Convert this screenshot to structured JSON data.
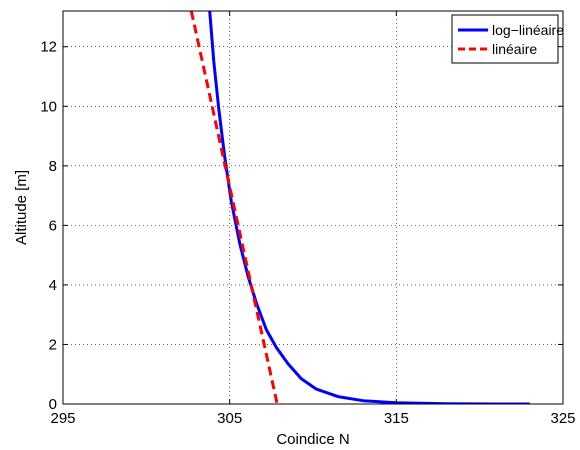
{
  "chart_data": {
    "type": "line",
    "xlabel": "Coindice N",
    "ylabel": "Altitude [m]",
    "xlim": [
      295,
      325
    ],
    "ylim": [
      0,
      13.2
    ],
    "xticks": [
      295,
      305,
      315,
      325
    ],
    "yticks": [
      0,
      2,
      4,
      6,
      8,
      10,
      12
    ],
    "grid": true,
    "legend_position": "top-right",
    "series": [
      {
        "name": "log−linéaire",
        "color": "#0000ff",
        "style": "solid",
        "x": [
          303.8,
          304.05,
          304.35,
          304.7,
          305.1,
          305.6,
          306.1,
          306.6,
          307.2,
          307.8,
          308.5,
          309.3,
          310.2,
          311.5,
          313,
          315,
          318,
          321,
          323
        ],
        "y": [
          13.2,
          11.5,
          9.9,
          8.3,
          6.8,
          5.4,
          4.3,
          3.4,
          2.5,
          1.9,
          1.35,
          0.85,
          0.5,
          0.25,
          0.11,
          0.04,
          0.01,
          0.0,
          0.0
        ]
      },
      {
        "name": "linéaire",
        "color": "#ff0000",
        "style": "dashed",
        "x": [
          302.7,
          307.85
        ],
        "y": [
          13.2,
          0
        ]
      }
    ]
  }
}
